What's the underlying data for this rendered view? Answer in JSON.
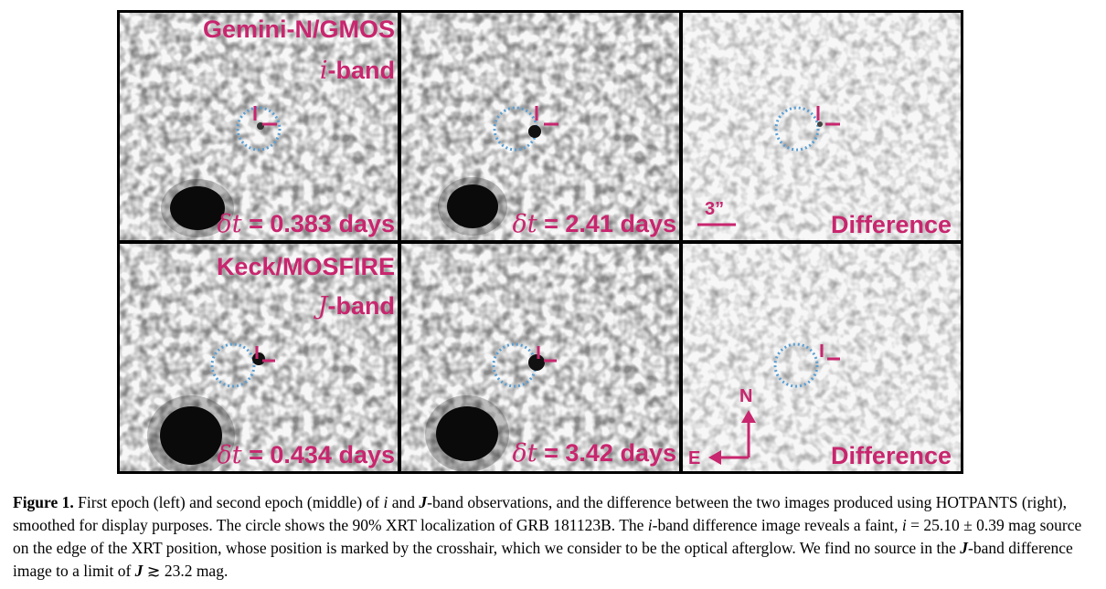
{
  "figure": {
    "rows": [
      {
        "instrument": "Gemini-N/GMOS",
        "band_symbol": "i",
        "band_suffix": "-band",
        "epoch1": {
          "symbol": "δt",
          "text": " = 0.383 days"
        },
        "epoch2": {
          "symbol": "δt",
          "text": " = 2.41 days"
        },
        "difference": "Difference",
        "scale_bar": "3”"
      },
      {
        "instrument": "Keck/MOSFIRE",
        "band_symbol": "J",
        "band_suffix": "-band",
        "epoch1": {
          "symbol": "δt",
          "text": " = 0.434 days"
        },
        "epoch2": {
          "symbol": "δt",
          "text": " = 3.42 days"
        },
        "difference": "Difference",
        "compass_n": "N",
        "compass_e": "E"
      }
    ],
    "colors": {
      "label": "#c8266e",
      "circle": "#5a9fd4",
      "crosshair": "#c8266e"
    }
  },
  "caption": {
    "label": "Figure 1.",
    "p1": " First epoch (left) and second epoch (middle) of ",
    "i1": "i",
    "p2": " and ",
    "j1": "J",
    "p3": "-band observations, and the difference between the two images produced using HOTPANTS (right), smoothed for display purposes. The circle shows the 90% XRT localization of GRB 181123B. The ",
    "i2": "i",
    "p4": "-band difference image reveals a faint, ",
    "i3": "i",
    "p5": " = 25.10 ± 0.39 mag source on the edge of the XRT position, whose position is marked by the crosshair, which we consider to be the optical afterglow. We find no source in the ",
    "j2": "J",
    "p6": "-band difference image to a limit of ",
    "j3": "J",
    "p7": " ≳ 23.2 mag."
  }
}
